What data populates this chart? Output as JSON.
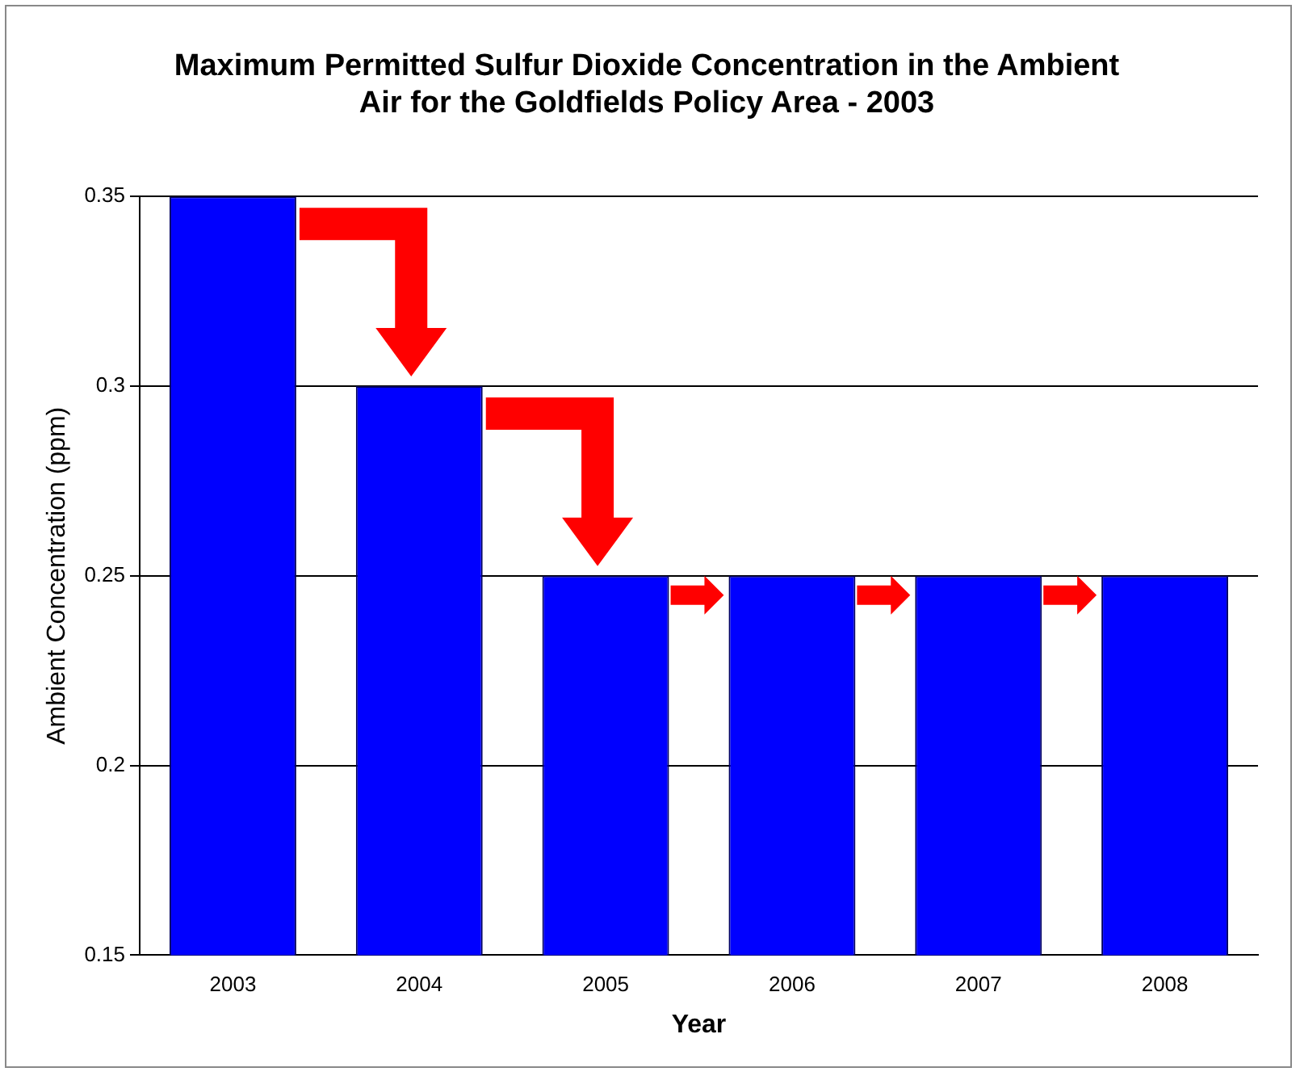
{
  "chart_data": {
    "type": "bar",
    "title": "Maximum Permitted Sulfur Dioxide Concentration in the Ambient Air for the Goldfields Policy Area - 2003",
    "xlabel": "Year",
    "ylabel": "Ambient Concentration (ppm)",
    "categories": [
      "2003",
      "2004",
      "2005",
      "2006",
      "2007",
      "2008"
    ],
    "values": [
      0.35,
      0.3,
      0.25,
      0.25,
      0.25,
      0.25
    ],
    "color": "#0000ff",
    "ylim": [
      0.15,
      0.35
    ],
    "yticks": [
      0.15,
      0.2,
      0.25,
      0.3,
      0.35
    ],
    "grid": "y",
    "legend": false
  }
}
